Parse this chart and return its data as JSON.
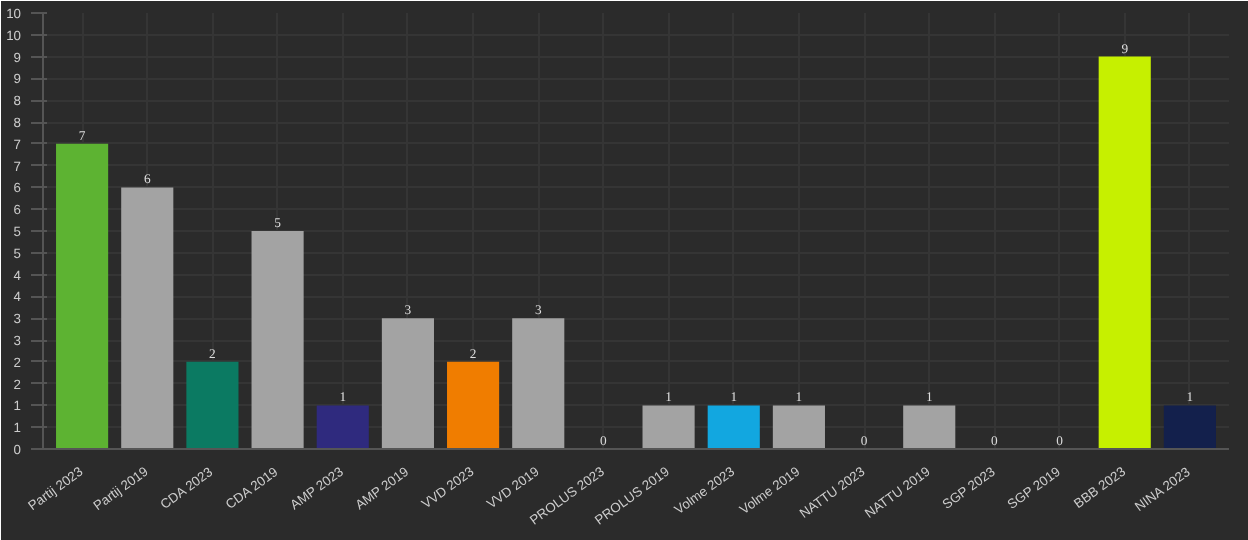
{
  "chart_data": {
    "type": "bar",
    "categories": [
      "Partij 2023",
      "Partij 2019",
      "CDA 2023",
      "CDA 2019",
      "AMP 2023",
      "AMP 2019",
      "VVD 2023",
      "VVD 2019",
      "PROLUS 2023",
      "PROLUS 2019",
      "Volme 2023",
      "Volme 2019",
      "NATTU 2023",
      "NATTU 2019",
      "SGP 2023",
      "SGP 2019",
      "BBB 2023",
      "NINA 2023"
    ],
    "values": [
      7,
      6,
      2,
      5,
      1,
      3,
      2,
      3,
      0,
      1,
      1,
      1,
      0,
      1,
      0,
      0,
      9,
      1
    ],
    "colors": [
      "#5db332",
      "#a3a3a3",
      "#0b7a62",
      "#a3a3a3",
      "#2f2a7e",
      "#a3a3a3",
      "#f07d00",
      "#a3a3a3",
      "#a3a3a3",
      "#a3a3a3",
      "#12a7e0",
      "#a3a3a3",
      "#a3a3a3",
      "#a3a3a3",
      "#a3a3a3",
      "#a3a3a3",
      "#c6f000",
      "#13204c"
    ],
    "ylim": [
      0,
      10
    ],
    "yticks": [
      0,
      {
        "value": 0.5,
        "label": "1"
      },
      1,
      {
        "value": 1.5,
        "label": "2"
      },
      2,
      {
        "value": 2.5,
        "label": "3"
      },
      3,
      {
        "value": 3.5,
        "label": "4"
      },
      4,
      {
        "value": 4.5,
        "label": "5"
      },
      5,
      {
        "value": 5.5,
        "label": "6"
      },
      6,
      {
        "value": 6.5,
        "label": "7"
      },
      7,
      {
        "value": 7.5,
        "label": "8"
      },
      8,
      {
        "value": 8.5,
        "label": "9"
      },
      9,
      {
        "value": 9.5,
        "label": "10"
      },
      10
    ],
    "grid": true,
    "data_labels": true
  }
}
